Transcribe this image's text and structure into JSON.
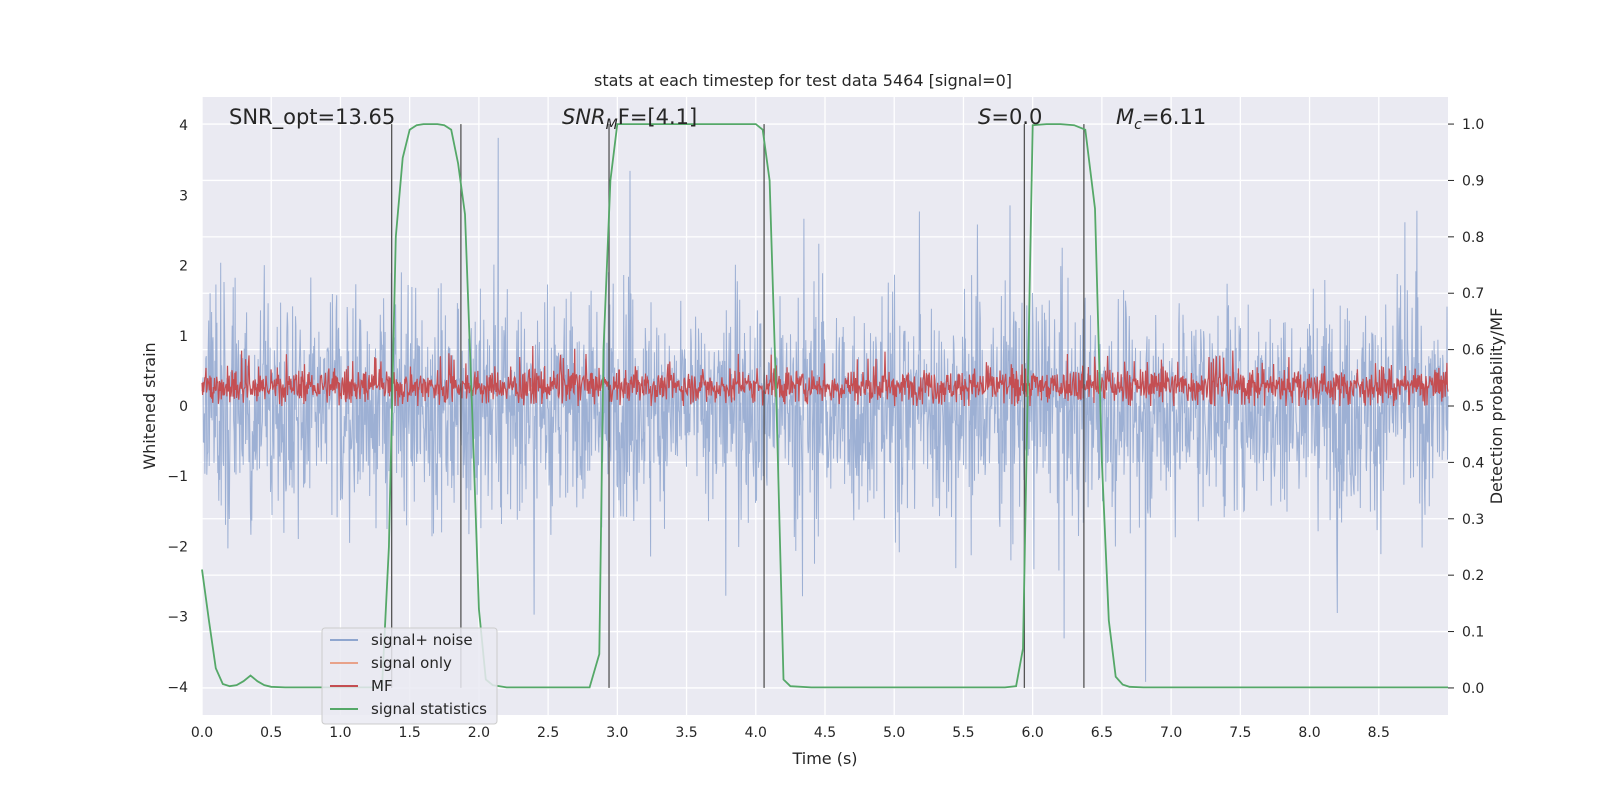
{
  "chart_data": {
    "type": "line",
    "title": "stats at each timestep for test data 5464 [signal=0]",
    "xlabel": "Time (s)",
    "ylabel_left": "Whitened strain",
    "ylabel_right": "Detection probability/MF",
    "xlim": [
      0.0,
      9.0
    ],
    "ylim_left": [
      -4.4,
      4.4
    ],
    "ylim_right": [
      -0.048,
      1.048
    ],
    "x_ticks": [
      "0.0",
      "0.5",
      "1.0",
      "1.5",
      "2.0",
      "2.5",
      "3.0",
      "3.5",
      "4.0",
      "4.5",
      "5.0",
      "5.5",
      "6.0",
      "6.5",
      "7.0",
      "7.5",
      "8.0",
      "8.5"
    ],
    "y_ticks_left": [
      "−4",
      "−3",
      "−2",
      "−1",
      "0",
      "1",
      "2",
      "3",
      "4"
    ],
    "y_ticks_right": [
      "0.0",
      "0.1",
      "0.2",
      "0.3",
      "0.4",
      "0.5",
      "0.6",
      "0.7",
      "0.8",
      "0.9",
      "1.0"
    ],
    "grid": true,
    "legend_position": "lower-left",
    "annotations": {
      "snr_opt": "SNR_opt=13.65",
      "snr_mf_main": "SNR",
      "snr_mf_sub": "M",
      "snr_mf_tail": "F=[4.1]",
      "s_italic": "S",
      "s_value": "=0.0",
      "mc_main": "M",
      "mc_sub": "c",
      "mc_value": "=6.11"
    },
    "series": [
      {
        "name": "signal+ noise",
        "color": "#8fa6cf",
        "axis": "left",
        "description_values": {
          "approx_range": [
            -4.0,
            4.0
          ]
        }
      },
      {
        "name": "signal only",
        "color": "#e8a28a",
        "axis": "left",
        "values": []
      },
      {
        "name": "MF",
        "color": "#c44e52",
        "axis": "left",
        "description_values": {
          "approx_range": [
            0.0,
            1.0
          ]
        }
      },
      {
        "name": "signal statistics",
        "color": "#55a868",
        "axis": "right",
        "x": [
          0.0,
          0.05,
          0.1,
          0.15,
          0.2,
          0.25,
          0.3,
          0.35,
          0.4,
          0.45,
          0.5,
          0.6,
          0.8,
          1.0,
          1.2,
          1.3,
          1.35,
          1.4,
          1.45,
          1.5,
          1.55,
          1.6,
          1.65,
          1.7,
          1.75,
          1.8,
          1.85,
          1.9,
          1.95,
          2.0,
          2.05,
          2.1,
          2.2,
          2.4,
          2.6,
          2.8,
          2.87,
          2.9,
          2.95,
          3.0,
          3.2,
          3.5,
          4.0,
          4.05,
          4.1,
          4.15,
          4.2,
          4.25,
          4.4,
          5.0,
          5.5,
          5.8,
          5.88,
          5.93,
          5.97,
          6.0,
          6.1,
          6.2,
          6.3,
          6.38,
          6.45,
          6.5,
          6.55,
          6.6,
          6.65,
          6.7,
          6.8,
          7.5,
          8.5,
          9.0
        ],
        "values": [
          0.21,
          0.12,
          0.035,
          0.007,
          0.003,
          0.005,
          0.012,
          0.022,
          0.012,
          0.005,
          0.002,
          0.001,
          0.001,
          0.001,
          0.001,
          0.001,
          0.25,
          0.8,
          0.94,
          0.99,
          0.998,
          1.0,
          1.0,
          1.0,
          0.998,
          0.99,
          0.93,
          0.84,
          0.5,
          0.14,
          0.015,
          0.005,
          0.001,
          0.001,
          0.001,
          0.001,
          0.06,
          0.6,
          0.9,
          1.0,
          1.0,
          1.0,
          1.0,
          0.99,
          0.9,
          0.5,
          0.015,
          0.003,
          0.001,
          0.001,
          0.001,
          0.001,
          0.003,
          0.07,
          0.6,
          0.998,
          1.0,
          1.0,
          0.998,
          0.99,
          0.85,
          0.4,
          0.12,
          0.02,
          0.006,
          0.002,
          0.001,
          0.001,
          0.001,
          0.001
        ]
      }
    ],
    "vertical_markers": [
      1.37,
      1.87,
      2.94,
      4.06,
      5.94,
      6.37
    ]
  }
}
